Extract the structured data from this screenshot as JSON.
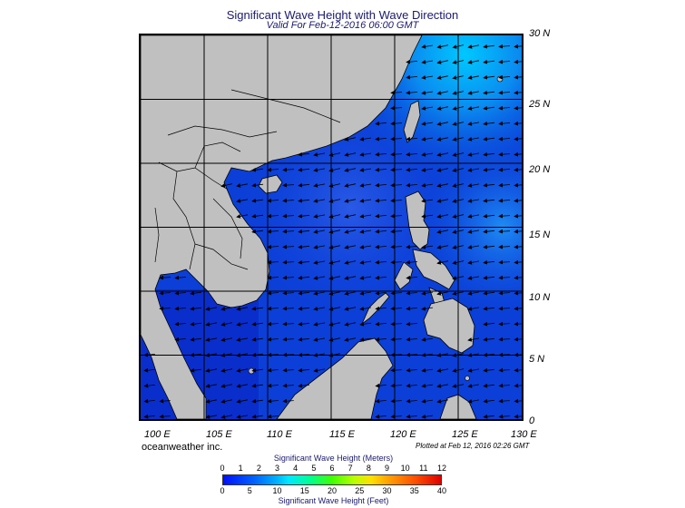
{
  "header": {
    "title": "Significant Wave Height with Wave Direction",
    "subtitle": "Valid For Feb-12-2016 06:00 GMT"
  },
  "map": {
    "lat_labels": [
      "30 N",
      "25 N",
      "20 N",
      "15 N",
      "10 N",
      "5 N",
      "0"
    ],
    "lon_labels": [
      "100 E",
      "105 E",
      "110 E",
      "115 E",
      "120 E",
      "125 E",
      "130 E"
    ],
    "land_color": "#c0c0c0",
    "sea_base_color": "#0b3fd8",
    "wave_direction": "arrows pointing southwest with northeast monsoon swell"
  },
  "footer": {
    "credit": "oceanweather inc.",
    "plotted": "Plotted at Feb 12, 2016 02:26 GMT"
  },
  "legend": {
    "title_meters": "Significant Wave Height (Meters)",
    "title_feet": "Significant Wave Height (Feet)",
    "meters_ticks": [
      "0",
      "1",
      "2",
      "3",
      "4",
      "5",
      "6",
      "7",
      "8",
      "9",
      "10",
      "11",
      "12"
    ],
    "feet_ticks": [
      "0",
      "5",
      "10",
      "15",
      "20",
      "25",
      "30",
      "35",
      "40"
    ]
  }
}
